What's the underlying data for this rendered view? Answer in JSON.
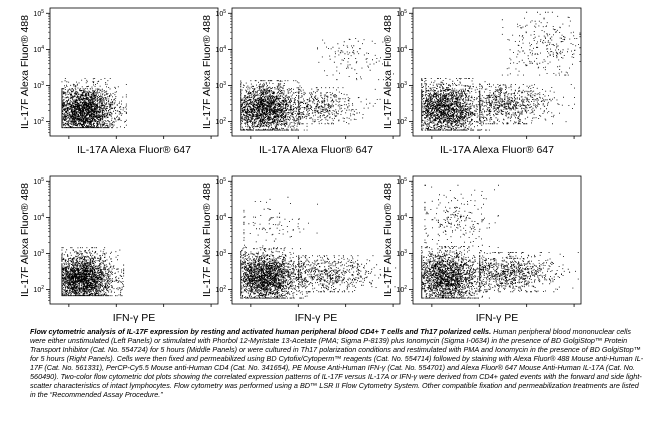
{
  "chart_data": [
    {
      "type": "scatter",
      "panel": "top-left",
      "xlabel": "IL-17A Alexa Fluor® 647",
      "ylabel": "IL-17F Alexa Fluor® 488",
      "x_scale": "log",
      "y_scale": "log",
      "xlim": [
        40,
        140000
      ],
      "ylim": [
        40,
        140000
      ],
      "y_ticks": [
        "10^2",
        "10^3",
        "10^4",
        "10^5"
      ],
      "populations": [
        {
          "name": "",
          "center_x": 200,
          "center_y": 200,
          "x_range": [
            70,
            1600
          ],
          "y_range": [
            70,
            1600
          ],
          "n": 2600
        }
      ]
    },
    {
      "type": "scatter",
      "panel": "top-middle",
      "xlabel": "IL-17A Alexa Fluor® 647",
      "ylabel": "IL-17F Alexa Fluor® 488",
      "x_scale": "log",
      "y_scale": "log",
      "xlim": [
        40,
        140000
      ],
      "ylim": [
        40,
        140000
      ],
      "y_ticks": [
        "10^2",
        "10^3",
        "10^4",
        "10^5"
      ],
      "populations": [
        {
          "name": "",
          "center_x": 200,
          "center_y": 220,
          "x_range": [
            60,
            1500
          ],
          "y_range": [
            60,
            1400
          ],
          "n": 2300
        },
        {
          "name": "",
          "center_x": 2500,
          "center_y": 280,
          "x_range": [
            1000,
            60000
          ],
          "y_range": [
            90,
            900
          ],
          "n": 500
        },
        {
          "name": "",
          "center_x": 12000,
          "center_y": 6000,
          "x_range": [
            2500,
            100000
          ],
          "y_range": [
            1500,
            40000
          ],
          "n": 110
        }
      ]
    },
    {
      "type": "scatter",
      "panel": "top-right",
      "xlabel": "IL-17A Alexa Fluor® 647",
      "ylabel": "IL-17F Alexa Fluor® 488",
      "x_scale": "log",
      "y_scale": "log",
      "xlim": [
        40,
        140000
      ],
      "ylim": [
        40,
        140000
      ],
      "y_ticks": [
        "10^2",
        "10^3",
        "10^4",
        "10^5"
      ],
      "populations": [
        {
          "name": "",
          "center_x": 190,
          "center_y": 230,
          "x_range": [
            60,
            1600
          ],
          "y_range": [
            60,
            1600
          ],
          "n": 2100
        },
        {
          "name": "",
          "center_x": 3500,
          "center_y": 300,
          "x_range": [
            1000,
            100000
          ],
          "y_range": [
            90,
            1100
          ],
          "n": 800
        },
        {
          "name": "",
          "center_x": 25000,
          "center_y": 12000,
          "x_range": [
            3000,
            130000
          ],
          "y_range": [
            2000,
            110000
          ],
          "n": 260
        }
      ]
    },
    {
      "type": "scatter",
      "panel": "bottom-left",
      "xlabel": "IFN-γ PE",
      "ylabel": "IL-17F Alexa Fluor® 488",
      "x_scale": "log",
      "y_scale": "log",
      "xlim": [
        40,
        140000
      ],
      "ylim": [
        40,
        140000
      ],
      "y_ticks": [
        "10^2",
        "10^3",
        "10^4",
        "10^5"
      ],
      "populations": [
        {
          "name": "",
          "center_x": 190,
          "center_y": 210,
          "x_range": [
            70,
            1400
          ],
          "y_range": [
            70,
            1500
          ],
          "n": 2600
        }
      ]
    },
    {
      "type": "scatter",
      "panel": "bottom-middle",
      "xlabel": "IFN-γ PE",
      "ylabel": "IL-17F Alexa Fluor® 488",
      "x_scale": "log",
      "y_scale": "log",
      "xlim": [
        40,
        140000
      ],
      "ylim": [
        40,
        140000
      ],
      "y_ticks": [
        "10^2",
        "10^3",
        "10^4",
        "10^5"
      ],
      "populations": [
        {
          "name": "",
          "center_x": 200,
          "center_y": 220,
          "x_range": [
            60,
            1500
          ],
          "y_range": [
            60,
            1400
          ],
          "n": 2300
        },
        {
          "name": "",
          "center_x": 4000,
          "center_y": 280,
          "x_range": [
            1000,
            120000
          ],
          "y_range": [
            90,
            900
          ],
          "n": 650
        },
        {
          "name": "",
          "center_x": 250,
          "center_y": 6000,
          "x_range": [
            70,
            2500
          ],
          "y_range": [
            1500,
            40000
          ],
          "n": 100
        }
      ]
    },
    {
      "type": "scatter",
      "panel": "bottom-right",
      "xlabel": "IFN-γ PE",
      "ylabel": "IL-17F Alexa Fluor® 488",
      "x_scale": "log",
      "y_scale": "log",
      "xlim": [
        40,
        140000
      ],
      "ylim": [
        40,
        140000
      ],
      "y_ticks": [
        "10^2",
        "10^3",
        "10^4",
        "10^5"
      ],
      "populations": [
        {
          "name": "",
          "center_x": 200,
          "center_y": 230,
          "x_range": [
            60,
            1600
          ],
          "y_range": [
            60,
            1600
          ],
          "n": 2000
        },
        {
          "name": "",
          "center_x": 3500,
          "center_y": 300,
          "x_range": [
            1000,
            120000
          ],
          "y_range": [
            90,
            1100
          ],
          "n": 900
        },
        {
          "name": "",
          "center_x": 300,
          "center_y": 9000,
          "x_range": [
            70,
            2500
          ],
          "y_range": [
            1500,
            80000
          ],
          "n": 220
        }
      ]
    }
  ],
  "caption": {
    "title": "Flow cytometric analysis of IL-17F expression by resting and activated human peripheral blood CD4+ T cells and Th17 polarized cells.",
    "body": " Human peripheral blood mononuclear cells were either unstimulated (Left Panels) or stimulated with Phorbol 12-Myristate 13-Acetate (PMA; Sigma P-8139) plus Ionomycin (Sigma I-0634) in the presence of BD GolgiStop™ Protein Transport Inhibitor (Cat. No. 554724) for 5 hours (Middle Panels) or were cultured in Th17 polarization conditions and restimulated with PMA and Ionomycin in the presence of BD GolgiStop™ for 5 hours (Right Panels). Cells were then fixed and permeabilized using BD Cytofix/Cytoperm™ reagents (Cat. No. 554714) followed by staining with Alexa Fluor® 488 Mouse anti-Human IL-17F (Cat. No. 561331), PerCP-Cy5.5 Mouse anti-Human CD4 (Cat. No. 341654), PE Mouse Anti-Human IFN-γ (Cat. No. 554701) and Alexa Fluor® 647 Mouse Anti-Human IL-17A (Cat. No. 560490). Two-color flow cytometric dot plots showing the correlated expression patterns of IL-17F versus IL-17A or IFN-γ were derived from CD4+ gated events with the forward and side light-scatter characteristics of intact  lymphocytes. Flow cytometry was performed using a BD™ LSR II Flow Cytometry System. Other compatible fixation and permeabilization treatments are listed in the “Recommended Assay Procedure.”"
  }
}
